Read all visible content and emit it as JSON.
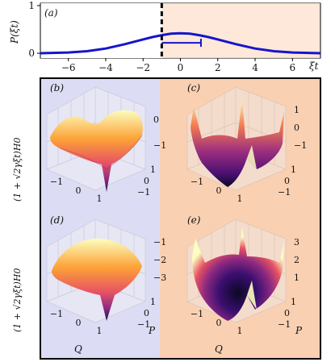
{
  "figure": {
    "panel_a_label": "(a)",
    "panel_b_label": "(b)",
    "panel_c_label": "(c)",
    "panel_d_label": "(d)",
    "panel_e_label": "(e)",
    "ylabel_top": "P(ξt)",
    "ylabel_lower": "(1 + √2γξt)H0",
    "xlabel_top": "ξt",
    "axis_Q": "Q",
    "axis_P": "P",
    "colors": {
      "curve": "#1515cc",
      "left_bg": "#dcdcf4",
      "right_bg": "#f9d0b2",
      "dashed": "#000000"
    }
  },
  "chart_data": [
    {
      "type": "line",
      "panel": "(a)",
      "xlim": [
        -7.5,
        7.5
      ],
      "ylim": [
        -0.1,
        1.05
      ],
      "x_ticks": [
        -6,
        -4,
        -2,
        0,
        2,
        4,
        6
      ],
      "y_ticks": [
        0,
        1
      ],
      "x_tick_labels": [
        "−6",
        "−4",
        "−2",
        "0",
        "2",
        "4",
        "6"
      ],
      "y_tick_labels": [
        "0",
        "1"
      ],
      "series": [
        {
          "x": [
            -7.5,
            -6,
            -5,
            -4,
            -3,
            -2,
            -1.5,
            -1,
            -0.5,
            0,
            0.5,
            1,
            1.5,
            2,
            3,
            4,
            5,
            6,
            7.5
          ],
          "y": [
            0.002,
            0.016,
            0.044,
            0.1,
            0.19,
            0.29,
            0.34,
            0.38,
            0.41,
            0.42,
            0.41,
            0.38,
            0.34,
            0.29,
            0.19,
            0.1,
            0.044,
            0.016,
            0.002
          ]
        }
      ],
      "dashed_vline_x": -1,
      "errorbar": {
        "center": -1,
        "low": -1,
        "high": 1.1,
        "y": 0.22
      },
      "shading": {
        "left_until": -1
      }
    },
    {
      "type": "surface",
      "panel": "(b)",
      "z_ticks": [
        0,
        -1
      ],
      "z_tick_labels": [
        "0",
        "−1"
      ],
      "q_tick_labels": [
        "−1",
        "0",
        "1"
      ],
      "p_tick_labels": [
        "1",
        "0",
        "−1"
      ]
    },
    {
      "type": "surface",
      "panel": "(c)",
      "z_ticks": [
        1,
        0,
        -1
      ],
      "z_tick_labels": [
        "1",
        "0",
        "−1"
      ],
      "q_tick_labels": [
        "−1",
        "0",
        "1"
      ],
      "p_tick_labels": [
        "1",
        "0",
        "−1"
      ]
    },
    {
      "type": "surface",
      "panel": "(d)",
      "z_ticks": [
        -1,
        -2,
        -3
      ],
      "z_tick_labels": [
        "−1",
        "−2",
        "−3"
      ],
      "q_tick_labels": [
        "−1",
        "0",
        "1"
      ],
      "p_tick_labels": [
        "1",
        "0",
        "−1"
      ]
    },
    {
      "type": "surface",
      "panel": "(e)",
      "z_ticks": [
        3,
        2,
        1
      ],
      "z_tick_labels": [
        "3",
        "2",
        "1"
      ],
      "q_tick_labels": [
        "−1",
        "0",
        "1"
      ],
      "p_tick_labels": [
        "1",
        "0",
        "−1"
      ]
    }
  ]
}
